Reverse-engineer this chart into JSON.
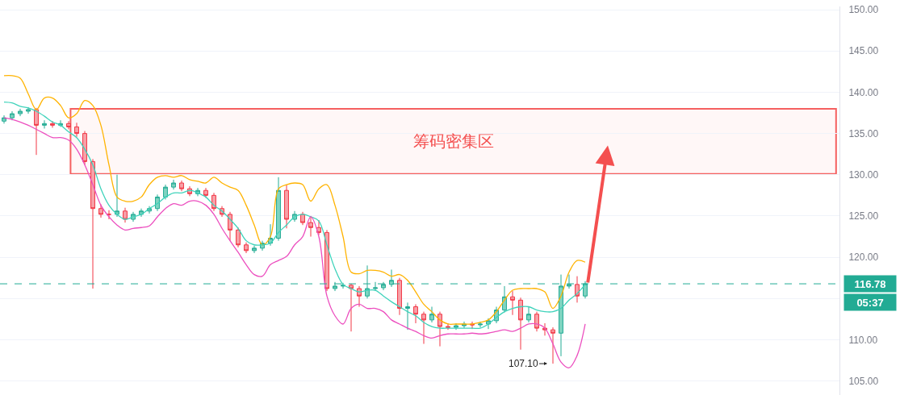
{
  "chart_data": {
    "type": "candlestick",
    "categories": [
      null,
      null,
      null,
      null,
      null,
      null,
      null,
      null,
      null,
      null,
      null,
      null,
      null,
      null,
      null,
      null,
      null,
      null,
      null,
      null,
      null,
      null,
      null,
      null,
      null,
      null,
      null,
      null,
      null,
      null,
      null,
      null,
      null,
      null,
      null,
      null,
      null,
      null,
      null,
      null,
      null,
      null,
      null,
      null,
      null,
      null,
      null,
      null,
      null,
      null,
      null,
      null,
      null,
      null,
      null,
      null,
      null,
      null,
      null,
      null,
      null,
      null,
      null,
      null,
      null,
      null,
      null,
      null,
      null,
      null,
      null,
      null,
      null,
      null,
      null,
      null,
      null,
      null,
      null,
      null,
      null,
      null,
      null,
      null,
      null,
      null,
      null,
      null,
      null,
      null,
      null,
      null,
      null,
      null,
      null,
      null,
      null,
      null,
      null,
      null,
      null,
      null,
      null,
      null
    ],
    "ohlc": [
      [
        136.5,
        137.2,
        136.2,
        136.9
      ],
      [
        136.9,
        137.7,
        136.6,
        137.4
      ],
      [
        137.4,
        138.0,
        137.1,
        137.7
      ],
      [
        137.7,
        138.2,
        137.4,
        137.9
      ],
      [
        137.9,
        138.1,
        132.4,
        136.0
      ],
      [
        136.0,
        136.6,
        135.6,
        136.2
      ],
      [
        136.2,
        136.5,
        135.7,
        136.0
      ],
      [
        136.0,
        136.6,
        135.8,
        136.2
      ],
      [
        136.2,
        136.5,
        135.5,
        135.8
      ],
      [
        135.8,
        136.3,
        134.6,
        135.0
      ],
      [
        135.0,
        135.3,
        131.2,
        131.6
      ],
      [
        131.6,
        131.9,
        116.2,
        125.9
      ],
      [
        125.9,
        126.4,
        124.8,
        125.2
      ],
      [
        125.2,
        125.7,
        124.6,
        125.2
      ],
      [
        125.2,
        130.0,
        124.9,
        125.6
      ],
      [
        125.6,
        126.0,
        124.2,
        124.6
      ],
      [
        124.6,
        125.5,
        124.3,
        125.2
      ],
      [
        125.2,
        125.9,
        124.9,
        125.6
      ],
      [
        125.6,
        126.2,
        125.3,
        125.9
      ],
      [
        125.9,
        127.6,
        125.6,
        127.3
      ],
      [
        127.3,
        128.8,
        127.0,
        128.5
      ],
      [
        128.5,
        129.4,
        128.2,
        129.0
      ],
      [
        129.0,
        129.3,
        128.0,
        128.3
      ],
      [
        128.3,
        128.6,
        127.4,
        127.7
      ],
      [
        127.7,
        128.4,
        127.4,
        128.1
      ],
      [
        128.1,
        128.4,
        127.2,
        127.5
      ],
      [
        127.5,
        127.8,
        125.6,
        125.9
      ],
      [
        125.9,
        126.2,
        124.9,
        125.2
      ],
      [
        125.2,
        125.5,
        122.0,
        123.3
      ],
      [
        123.3,
        123.6,
        121.2,
        121.5
      ],
      [
        121.5,
        121.8,
        120.5,
        120.8
      ],
      [
        120.8,
        121.4,
        120.5,
        121.1
      ],
      [
        121.1,
        122.0,
        120.8,
        121.7
      ],
      [
        121.7,
        124.0,
        121.4,
        122.3
      ],
      [
        122.3,
        129.7,
        122.0,
        128.1
      ],
      [
        128.1,
        128.8,
        123.5,
        124.6
      ],
      [
        124.6,
        125.6,
        124.3,
        125.2
      ],
      [
        125.2,
        125.5,
        123.9,
        124.2
      ],
      [
        124.2,
        125.0,
        122.5,
        123.6
      ],
      [
        123.6,
        124.5,
        122.7,
        123.0
      ],
      [
        123.0,
        123.3,
        115.9,
        116.2
      ],
      [
        116.2,
        117.0,
        115.9,
        116.5
      ],
      [
        116.5,
        116.9,
        116.2,
        116.6
      ],
      [
        116.6,
        116.8,
        111.0,
        116.2
      ],
      [
        116.2,
        116.5,
        114.0,
        115.3
      ],
      [
        115.3,
        119.0,
        115.0,
        116.2
      ],
      [
        116.2,
        117.0,
        115.9,
        116.3
      ],
      [
        116.3,
        117.0,
        116.0,
        116.7
      ],
      [
        116.7,
        118.5,
        116.4,
        117.2
      ],
      [
        117.2,
        117.5,
        113.0,
        113.8
      ],
      [
        113.8,
        114.5,
        111.2,
        114.0
      ],
      [
        114.0,
        114.3,
        112.0,
        113.1
      ],
      [
        113.1,
        113.4,
        109.5,
        112.4
      ],
      [
        112.4,
        114.0,
        112.1,
        113.1
      ],
      [
        113.1,
        113.4,
        109.2,
        111.6
      ],
      [
        111.6,
        112.0,
        111.2,
        111.5
      ],
      [
        111.5,
        112.0,
        111.2,
        111.7
      ],
      [
        111.7,
        112.2,
        111.4,
        111.9
      ],
      [
        111.9,
        112.2,
        111.3,
        111.8
      ],
      [
        111.8,
        112.2,
        111.5,
        111.9
      ],
      [
        111.9,
        112.6,
        111.3,
        112.3
      ],
      [
        112.3,
        114.0,
        112.0,
        113.6
      ],
      [
        113.6,
        116.5,
        113.3,
        115.2
      ],
      [
        115.2,
        115.9,
        113.0,
        114.8
      ],
      [
        114.8,
        115.1,
        108.8,
        112.4
      ],
      [
        112.4,
        114.0,
        112.1,
        113.1
      ],
      [
        113.1,
        113.4,
        111.0,
        111.4
      ],
      [
        111.4,
        112.0,
        110.5,
        111.2
      ],
      [
        111.2,
        111.5,
        107.1,
        110.8
      ],
      [
        110.8,
        117.9,
        108.0,
        116.5
      ],
      [
        116.5,
        117.9,
        116.2,
        116.7
      ],
      [
        116.7,
        117.7,
        114.5,
        115.3
      ],
      [
        115.3,
        117.1,
        115.0,
        116.78
      ],
      null,
      null,
      null,
      null,
      null,
      null,
      null,
      null,
      null,
      null,
      null,
      null,
      null,
      null,
      null,
      null,
      null,
      null,
      null,
      null,
      null,
      null,
      null,
      null,
      null,
      null,
      null,
      null,
      null,
      null,
      null
    ],
    "series": [
      {
        "type": "line",
        "color": "#ffb300",
        "values": [
          142.0,
          142.0,
          141.7,
          139.8,
          137.9,
          139.3,
          139.3,
          138.4,
          136.9,
          137.4,
          139.0,
          138.4,
          136.0,
          131.2,
          127.3,
          126.8,
          126.8,
          127.3,
          128.8,
          129.7,
          129.9,
          129.7,
          129.9,
          129.4,
          129.2,
          129.0,
          129.7,
          129.0,
          128.5,
          128.1,
          126.3,
          123.9,
          121.5,
          122.5,
          128.3,
          128.8,
          129.0,
          128.8,
          126.8,
          128.3,
          128.8,
          126.3,
          122.5,
          118.2,
          118.0,
          118.4,
          118.4,
          118.2,
          117.7,
          117.9,
          117.2,
          115.8,
          114.3,
          113.4,
          112.4,
          111.9,
          111.9,
          111.9,
          111.9,
          112.1,
          112.4,
          113.4,
          114.8,
          116.0,
          116.2,
          116.2,
          116.2,
          115.8,
          113.8,
          115.3,
          118.2,
          119.6,
          119.4,
          null,
          null,
          null,
          null,
          null,
          null,
          null,
          null,
          null,
          null,
          null,
          null,
          null,
          null,
          null,
          null,
          null,
          null,
          null,
          null,
          null,
          null,
          null,
          null,
          null,
          null,
          null,
          null,
          null,
          null,
          null
        ]
      },
      {
        "type": "line",
        "color": "#3fd3bb",
        "values": [
          138.8,
          138.7,
          138.3,
          138.1,
          137.7,
          137.1,
          136.4,
          136.0,
          135.2,
          134.5,
          133.1,
          131.2,
          128.3,
          126.3,
          125.2,
          124.6,
          124.9,
          125.2,
          125.9,
          126.5,
          127.3,
          127.8,
          127.8,
          128.1,
          127.8,
          127.3,
          126.3,
          125.6,
          124.6,
          123.5,
          122.0,
          121.5,
          121.5,
          121.7,
          123.0,
          123.9,
          124.9,
          125.2,
          124.9,
          124.4,
          121.5,
          118.6,
          116.7,
          116.2,
          115.8,
          116.0,
          116.0,
          115.3,
          114.6,
          114.0,
          113.4,
          112.9,
          112.1,
          111.6,
          111.4,
          111.4,
          111.4,
          111.4,
          111.4,
          111.4,
          111.9,
          112.7,
          113.4,
          113.8,
          114.0,
          114.0,
          113.6,
          113.4,
          113.4,
          113.8,
          114.8,
          115.6,
          116.7,
          null,
          null,
          null,
          null,
          null,
          null,
          null,
          null,
          null,
          null,
          null,
          null,
          null,
          null,
          null,
          null,
          null,
          null,
          null,
          null,
          null,
          null,
          null,
          null,
          null,
          null,
          null,
          null,
          null,
          null,
          null
        ]
      },
      {
        "type": "line",
        "color": "#ec4fbf",
        "values": [
          136.9,
          136.7,
          136.4,
          136.0,
          135.5,
          135.0,
          134.5,
          134.5,
          134.2,
          133.1,
          131.2,
          128.8,
          126.3,
          124.9,
          123.9,
          123.3,
          123.5,
          123.6,
          123.8,
          124.9,
          125.9,
          126.5,
          126.3,
          126.8,
          126.8,
          126.3,
          125.2,
          123.5,
          122.0,
          120.6,
          119.1,
          117.9,
          117.7,
          119.1,
          119.6,
          120.1,
          121.5,
          122.5,
          124.9,
          122.5,
          115.3,
          112.9,
          111.9,
          113.8,
          114.3,
          113.8,
          113.8,
          113.4,
          112.4,
          111.9,
          111.4,
          111.0,
          110.5,
          110.2,
          110.5,
          110.7,
          110.7,
          110.7,
          110.8,
          110.7,
          110.8,
          111.0,
          111.2,
          111.0,
          111.4,
          111.9,
          111.9,
          111.4,
          109.5,
          107.3,
          106.6,
          108.1,
          111.9,
          null,
          null,
          null,
          null,
          null,
          null,
          null,
          null,
          null,
          null,
          null,
          null,
          null,
          null,
          null,
          null,
          null,
          null,
          null,
          null,
          null,
          null,
          null,
          null,
          null,
          null,
          null,
          null,
          null,
          null,
          null
        ]
      }
    ],
    "ylim": [
      103.3,
      150.4
    ],
    "yticks": [
      {
        "value": 105,
        "label": "105.00"
      },
      {
        "value": 110,
        "label": "110.00"
      },
      {
        "value": 115,
        "label": null
      },
      {
        "value": 120,
        "label": "120.00"
      },
      {
        "value": 125,
        "label": "125.00"
      },
      {
        "value": 130,
        "label": "130.00"
      },
      {
        "value": 135,
        "label": "135.00"
      },
      {
        "value": 140,
        "label": "140.00"
      },
      {
        "value": 145,
        "label": "145.00"
      },
      {
        "value": 150,
        "label": "150.00"
      }
    ],
    "tick_labels": "y",
    "grid": "y",
    "ref_lines": [
      {
        "axis": "y",
        "value": 116.78,
        "label": "116.78",
        "color": "#22ab94",
        "line_style": "dashed"
      }
    ],
    "bands": [
      {
        "axis": "y",
        "from": 130.2,
        "to": 137.9,
        "label": "筹码密集区",
        "color": "#f44f4f"
      }
    ],
    "annotations": [
      "05:37",
      "107.10"
    ]
  }
}
